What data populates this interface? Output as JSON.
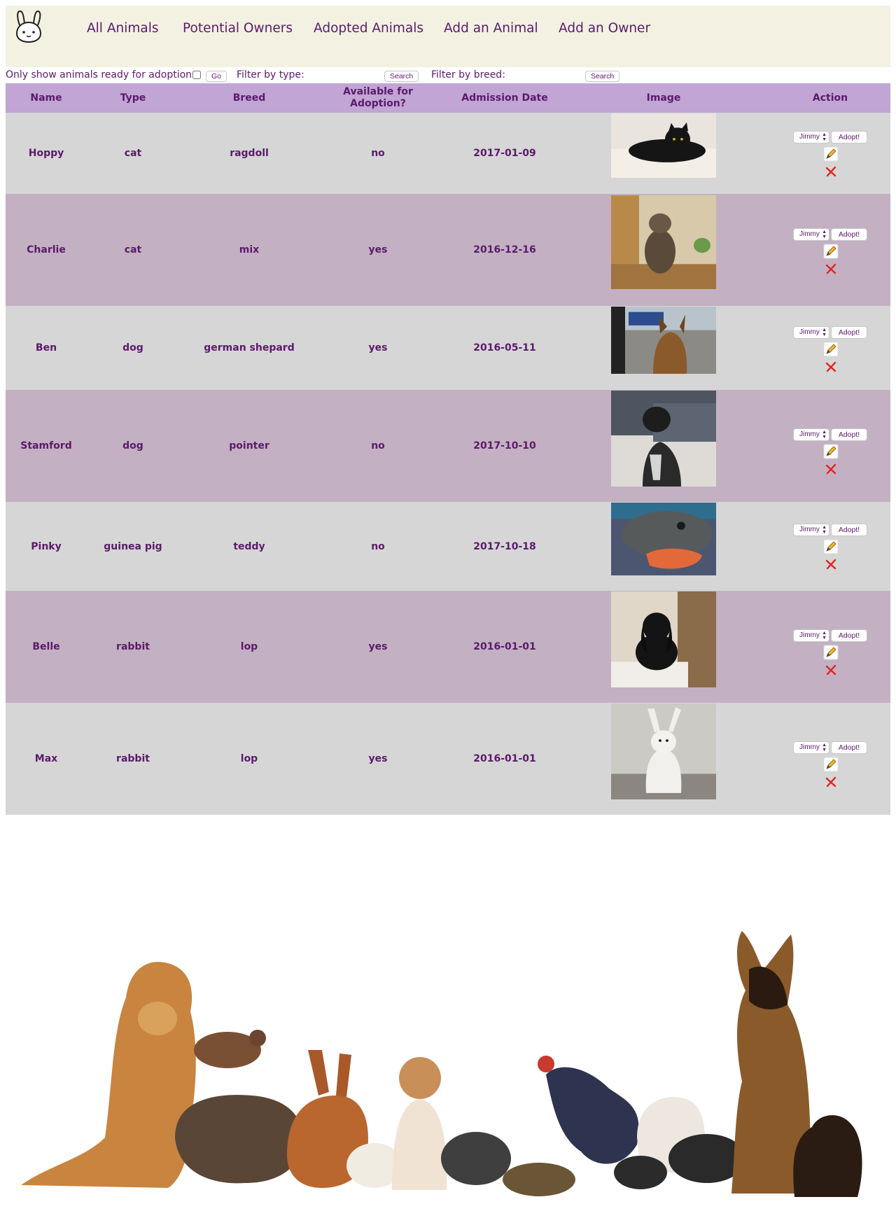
{
  "nav": {
    "logo_icon": "bunny-logo-icon",
    "links": [
      "All Animals",
      "Potential Owners",
      "Adopted Animals",
      "Add an Animal",
      "Add an Owner"
    ]
  },
  "filters": {
    "ready_label": "Only show animals ready for adoption:",
    "go_label": "Go",
    "type_label": "Filter by type:",
    "type_value": "",
    "breed_label": "Filter by breed:",
    "breed_value": "",
    "search_label": "Search"
  },
  "table": {
    "headers": [
      "Name",
      "Type",
      "Breed",
      "Available for Adoption?",
      "Admission Date",
      "Image",
      "Action"
    ],
    "rows": [
      {
        "name": "Hoppy",
        "type": "cat",
        "breed": "ragdoll",
        "available": "no",
        "date": "2017-01-09",
        "owner": "Jimmy",
        "adopt": "Adopt!",
        "image": "black-cat-photo"
      },
      {
        "name": "Charlie",
        "type": "cat",
        "breed": "mix",
        "available": "yes",
        "date": "2016-12-16",
        "owner": "Jimmy",
        "adopt": "Adopt!",
        "image": "tabby-cat-on-chair-photo"
      },
      {
        "name": "Ben",
        "type": "dog",
        "breed": "german shepard",
        "available": "yes",
        "date": "2016-05-11",
        "owner": "Jimmy",
        "adopt": "Adopt!",
        "image": "german-shepherd-photo"
      },
      {
        "name": "Stamford",
        "type": "dog",
        "breed": "pointer",
        "available": "no",
        "date": "2017-10-10",
        "owner": "Jimmy",
        "adopt": "Adopt!",
        "image": "pointer-dog-photo"
      },
      {
        "name": "Pinky",
        "type": "guinea pig",
        "breed": "teddy",
        "available": "no",
        "date": "2017-10-18",
        "owner": "Jimmy",
        "adopt": "Adopt!",
        "image": "guinea-pig-photo"
      },
      {
        "name": "Belle",
        "type": "rabbit",
        "breed": "lop",
        "available": "yes",
        "date": "2016-01-01",
        "owner": "Jimmy",
        "adopt": "Adopt!",
        "image": "black-lop-rabbit-photo"
      },
      {
        "name": "Max",
        "type": "rabbit",
        "breed": "lop",
        "available": "yes",
        "date": "2016-01-01",
        "owner": "Jimmy",
        "adopt": "Adopt!",
        "image": "white-rabbit-photo"
      }
    ]
  },
  "icons": {
    "edit": "pencil-icon",
    "delete": "red-x-icon",
    "select_arrows": "up-down-arrows-icon"
  },
  "colors": {
    "accent": "#5b1a6b",
    "header_bg": "#c1a5d5",
    "row_light": "#d6d6d6",
    "row_dark": "#c3b0c2",
    "nav_bg": "#f3f1e1",
    "delete": "#e0231c"
  },
  "banner": {
    "image": "group-of-pets-banner"
  }
}
